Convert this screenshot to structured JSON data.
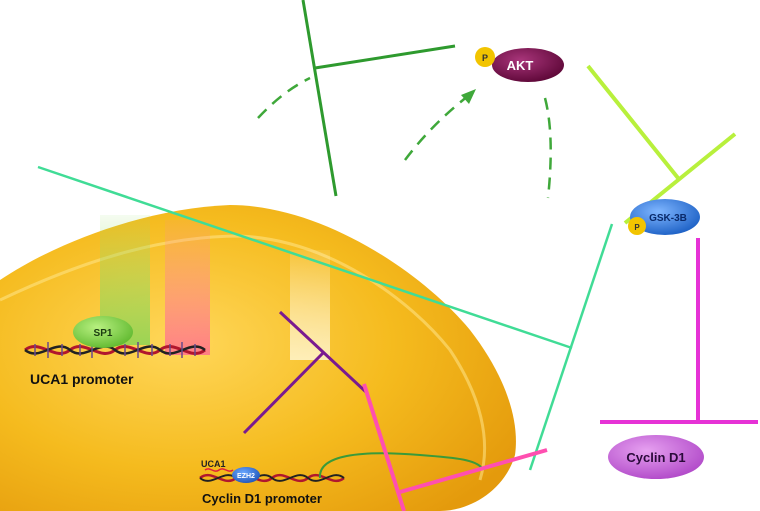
{
  "labels": {
    "akt": "AKT",
    "gsk3b": "GSK-3B",
    "cyclin_d1": "Cyclin D1",
    "sp1": "SP1",
    "uca1_promoter": "UCA1 promoter",
    "cyclin_d1_promoter": "Cyclin D1 promoter",
    "uca1": "UCA1",
    "ezh2": "EZH2",
    "phospho_akt": "P",
    "phospho_gsk": "P"
  },
  "colors": {
    "nucleus": "#f2b51c",
    "akt": "#7a0c4a",
    "gsk3b": "#2f7de0",
    "cyclin_d1": "#c55fd6",
    "phospho": "#f2c400",
    "sp1": "#7ed34a",
    "green_dark": "#2e9a2e",
    "green_arrow": "#4aa83a",
    "lime": "#b8f03c",
    "teal": "#40dc96",
    "magenta": "#e632d6",
    "pink": "#ff4fb0",
    "purple": "#7a1a90"
  }
}
